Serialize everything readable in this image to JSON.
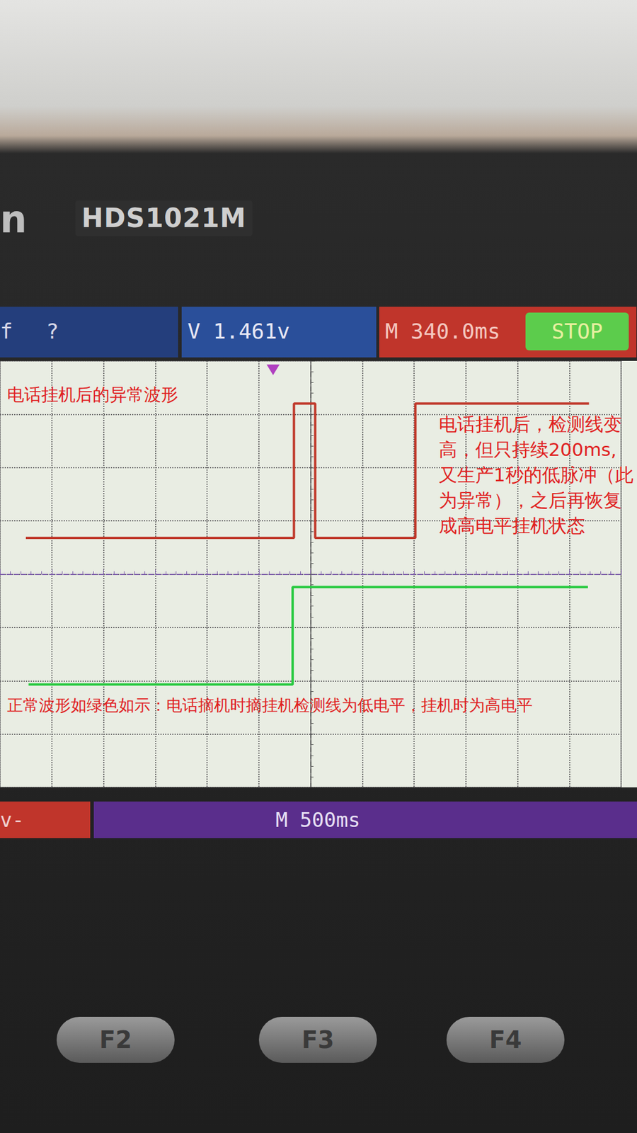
{
  "chart_data": {
    "type": "line",
    "brand": "n",
    "title": "HDS1021M",
    "status_bar": [
      "f",
      "?",
      "V 1.461v",
      "M 340.0ms",
      "STOP"
    ],
    "footer": [
      "v-",
      "M 500ms"
    ],
    "buttons": [
      "F2",
      "F3",
      "F4"
    ],
    "annotations": [
      "电话挂机后的异常波形",
      "电话挂机后，检测线变高，但只持续200ms,又生产1秒的低脉冲（此为异常），之后再恢复成高电平挂机状态",
      "正常波形如绿色如示：电话摘机时摘挂机检测线为低电平，挂机时为高电平"
    ],
    "xlim": [
      -3000,
      3000
    ],
    "xticks": [
      -3000,
      -2500,
      -2000,
      -1500,
      -1000,
      -500,
      0,
      500,
      1000,
      1500,
      2000,
      2500,
      3000
    ],
    "ylim": [
      -4,
      4
    ],
    "yticks": [
      -4,
      -3,
      -2,
      -1,
      0,
      1,
      2,
      3,
      4
    ],
    "grid": true,
    "tick_labels": false,
    "series": [
      {
        "color": "#c0392b",
        "x": [
          -2750,
          -160,
          -160,
          45,
          45,
          1013,
          1013,
          2690
        ],
        "values": [
          0.68,
          0.68,
          3.2,
          3.2,
          0.68,
          0.68,
          3.2,
          3.2
        ]
      },
      {
        "color": "#27c93f",
        "x": [
          -2724,
          -173,
          -173,
          2680
        ],
        "values": [
          -2.07,
          -2.07,
          -0.24,
          -0.24
        ]
      }
    ]
  }
}
